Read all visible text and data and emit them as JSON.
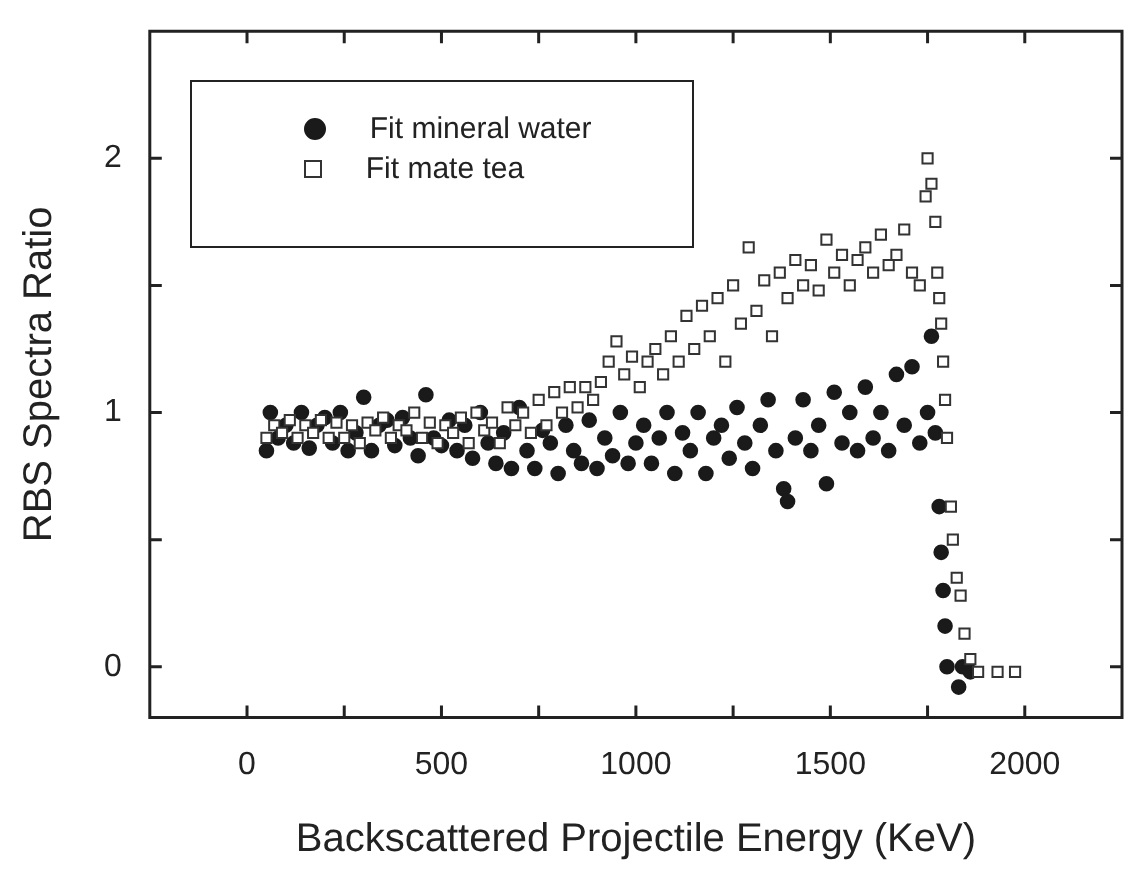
{
  "chart_data": {
    "type": "scatter",
    "xlabel": "Backscattered Projectile Energy (KeV)",
    "ylabel": "RBS Spectra Ratio",
    "xlim": [
      -250,
      2250
    ],
    "xticks": [
      0,
      {
        "value": 250,
        "label": null
      },
      500,
      {
        "value": 750,
        "label": null
      },
      1000,
      {
        "value": 1250,
        "label": null
      },
      1500,
      {
        "value": 1750,
        "label": null
      },
      2000
    ],
    "ylim": [
      -0.2,
      2.5
    ],
    "yticks": [
      0,
      {
        "value": 0.5,
        "label": null
      },
      1,
      {
        "value": 1.5,
        "label": null
      },
      2
    ],
    "grid": false,
    "legend": "top left",
    "series": [
      {
        "name": "Fit mineral water",
        "color": "#1a1a1a",
        "marker": "circle",
        "x": [
          50,
          60,
          80,
          100,
          120,
          140,
          160,
          180,
          200,
          220,
          240,
          260,
          280,
          300,
          320,
          340,
          360,
          380,
          400,
          420,
          440,
          460,
          480,
          500,
          520,
          540,
          560,
          580,
          600,
          620,
          640,
          660,
          680,
          700,
          720,
          740,
          760,
          780,
          800,
          820,
          840,
          860,
          880,
          900,
          920,
          940,
          960,
          980,
          1000,
          1020,
          1040,
          1060,
          1080,
          1100,
          1120,
          1140,
          1160,
          1180,
          1200,
          1220,
          1240,
          1260,
          1280,
          1300,
          1320,
          1340,
          1360,
          1380,
          1390,
          1410,
          1430,
          1450,
          1470,
          1490,
          1510,
          1530,
          1550,
          1570,
          1590,
          1610,
          1630,
          1650,
          1670,
          1690,
          1710,
          1730,
          1750,
          1760,
          1770,
          1780,
          1785,
          1790,
          1795,
          1800,
          1830,
          1840,
          1860
        ],
        "values": [
          0.85,
          1.0,
          0.9,
          0.95,
          0.88,
          1.0,
          0.86,
          0.95,
          0.98,
          0.88,
          1.0,
          0.85,
          0.92,
          1.06,
          0.85,
          0.95,
          0.97,
          0.87,
          0.98,
          0.9,
          0.83,
          1.07,
          0.9,
          0.87,
          0.97,
          0.85,
          0.95,
          0.82,
          1.0,
          0.88,
          0.8,
          0.92,
          0.78,
          1.02,
          0.85,
          0.78,
          0.93,
          0.88,
          0.76,
          0.95,
          0.85,
          0.8,
          0.97,
          0.78,
          0.9,
          0.83,
          1.0,
          0.8,
          0.88,
          0.95,
          0.8,
          0.9,
          1.0,
          0.76,
          0.92,
          0.85,
          1.0,
          0.76,
          0.9,
          0.95,
          0.82,
          1.02,
          0.88,
          0.78,
          0.95,
          1.05,
          0.85,
          0.7,
          0.65,
          0.9,
          1.05,
          0.85,
          0.95,
          0.72,
          1.08,
          0.88,
          1.0,
          0.85,
          1.1,
          0.9,
          1.0,
          0.85,
          1.15,
          0.95,
          1.18,
          0.88,
          1.0,
          1.3,
          0.92,
          0.63,
          0.45,
          0.3,
          0.16,
          0.0,
          -0.08,
          0.0,
          -0.02
        ]
      },
      {
        "name": "Fit mate tea",
        "color": "#333333",
        "marker": "square",
        "x": [
          50,
          70,
          90,
          110,
          130,
          150,
          170,
          190,
          210,
          230,
          250,
          270,
          290,
          310,
          330,
          350,
          370,
          390,
          410,
          430,
          450,
          470,
          490,
          510,
          530,
          550,
          570,
          590,
          610,
          630,
          650,
          670,
          690,
          710,
          730,
          750,
          770,
          790,
          810,
          830,
          850,
          870,
          890,
          910,
          930,
          950,
          970,
          990,
          1010,
          1030,
          1050,
          1070,
          1090,
          1110,
          1130,
          1150,
          1170,
          1190,
          1210,
          1230,
          1250,
          1270,
          1290,
          1310,
          1330,
          1350,
          1370,
          1390,
          1410,
          1430,
          1450,
          1470,
          1490,
          1510,
          1530,
          1550,
          1570,
          1590,
          1610,
          1630,
          1650,
          1670,
          1690,
          1710,
          1730,
          1745,
          1750,
          1760,
          1770,
          1775,
          1780,
          1785,
          1790,
          1795,
          1800,
          1810,
          1815,
          1825,
          1835,
          1845,
          1860,
          1880,
          1930,
          1975
        ],
        "values": [
          0.9,
          0.95,
          0.92,
          0.97,
          0.9,
          0.95,
          0.92,
          0.97,
          0.9,
          0.96,
          0.9,
          0.95,
          0.88,
          0.96,
          0.93,
          0.98,
          0.9,
          0.95,
          0.93,
          1.0,
          0.9,
          0.96,
          0.88,
          0.95,
          0.92,
          0.98,
          0.88,
          1.0,
          0.93,
          0.96,
          0.88,
          1.02,
          0.95,
          1.0,
          0.92,
          1.05,
          0.95,
          1.08,
          1.0,
          1.1,
          1.02,
          1.1,
          1.05,
          1.12,
          1.2,
          1.28,
          1.15,
          1.22,
          1.1,
          1.2,
          1.25,
          1.15,
          1.3,
          1.2,
          1.38,
          1.25,
          1.42,
          1.3,
          1.45,
          1.2,
          1.5,
          1.35,
          1.65,
          1.4,
          1.52,
          1.3,
          1.55,
          1.45,
          1.6,
          1.5,
          1.58,
          1.48,
          1.68,
          1.55,
          1.62,
          1.5,
          1.6,
          1.65,
          1.55,
          1.7,
          1.58,
          1.62,
          1.72,
          1.55,
          1.5,
          1.85,
          2.0,
          1.9,
          1.75,
          1.55,
          1.45,
          1.35,
          1.2,
          1.05,
          0.9,
          0.63,
          0.5,
          0.35,
          0.28,
          0.13,
          0.03,
          -0.02,
          -0.02,
          -0.02
        ]
      }
    ]
  }
}
